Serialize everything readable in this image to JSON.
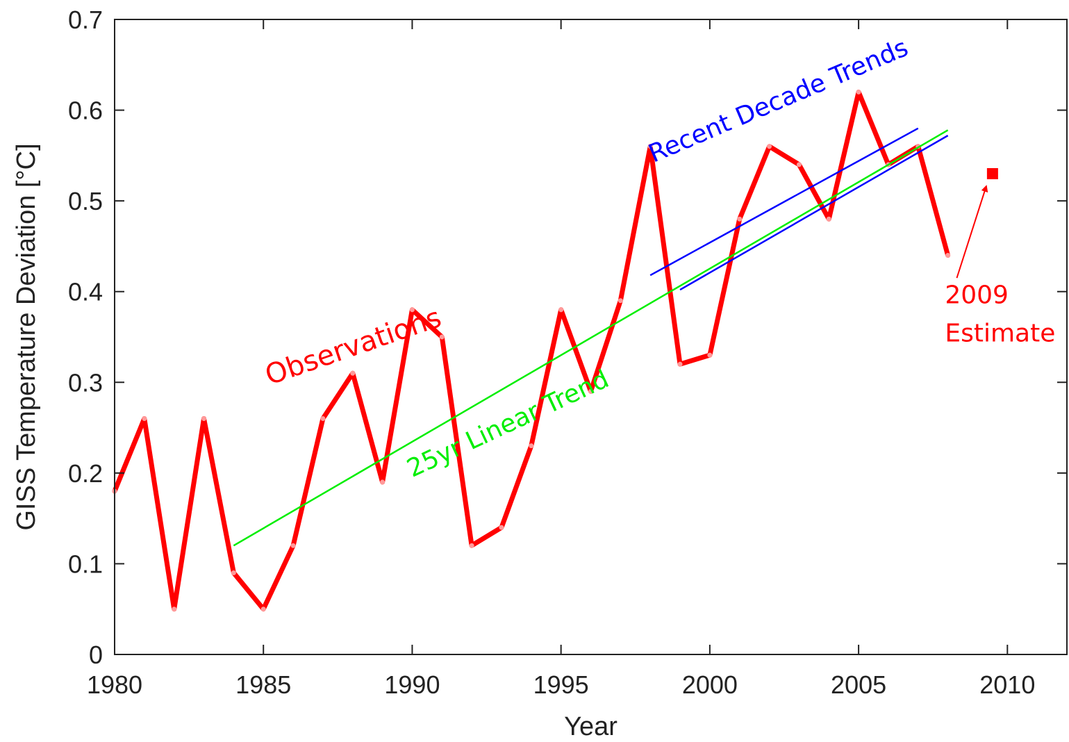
{
  "chart_data": {
    "type": "line",
    "xlabel": "Year",
    "ylabel": "GISS Temperature Deviation [°C]",
    "xlim": [
      1980,
      2012
    ],
    "ylim": [
      0,
      0.7
    ],
    "x_ticks": [
      1980,
      1985,
      1990,
      1995,
      2000,
      2005,
      2010
    ],
    "y_ticks": [
      0,
      0.1,
      0.2,
      0.3,
      0.4,
      0.5,
      0.6,
      0.7
    ],
    "x_tick_labels": [
      "1980",
      "1985",
      "1990",
      "1995",
      "2000",
      "2005",
      "2010"
    ],
    "y_tick_labels": [
      "0",
      "0.1",
      "0.2",
      "0.3",
      "0.4",
      "0.5",
      "0.6",
      "0.7"
    ],
    "grid": false,
    "series": [
      {
        "name": "Observations",
        "color": "#ff0000",
        "x": [
          1980,
          1981,
          1982,
          1983,
          1984,
          1985,
          1986,
          1987,
          1988,
          1989,
          1990,
          1991,
          1992,
          1993,
          1994,
          1995,
          1996,
          1997,
          1998,
          1999,
          2000,
          2001,
          2002,
          2003,
          2004,
          2005,
          2006,
          2007,
          2008
        ],
        "y": [
          0.18,
          0.26,
          0.05,
          0.26,
          0.09,
          0.05,
          0.12,
          0.26,
          0.31,
          0.19,
          0.38,
          0.35,
          0.12,
          0.14,
          0.23,
          0.38,
          0.29,
          0.39,
          0.56,
          0.32,
          0.33,
          0.48,
          0.56,
          0.54,
          0.48,
          0.62,
          0.54,
          0.56,
          0.44
        ]
      },
      {
        "name": "25yr Linear Trend",
        "color": "#00ee00",
        "x": [
          1984,
          2008
        ],
        "y": [
          0.12,
          0.578
        ]
      },
      {
        "name": "Recent Decade Trends",
        "color": "#0000ff",
        "lines": [
          {
            "x": [
              1998,
              2007
            ],
            "y": [
              0.418,
              0.58
            ]
          },
          {
            "x": [
              1999,
              2008
            ],
            "y": [
              0.402,
              0.572
            ]
          }
        ]
      }
    ],
    "estimate": {
      "x": 2009.5,
      "y": 0.53,
      "color": "#ff0000"
    },
    "annotations": [
      {
        "text": "Observations",
        "color": "#ff0000",
        "x": 1985.2,
        "y": 0.297,
        "angle": -19,
        "size": 40
      },
      {
        "text": "25yr Linear Trend",
        "color": "#00ee00",
        "x": 1990,
        "y": 0.195,
        "angle": -25,
        "size": 36
      },
      {
        "text": "Recent Decade Trends",
        "color": "#0000ff",
        "x": 1998.1,
        "y": 0.542,
        "angle": -23,
        "size": 36
      },
      {
        "text": "2009",
        "color": "#ff0000",
        "x": 2007.9,
        "y": 0.387,
        "angle": 0,
        "size": 36
      },
      {
        "text": "Estimate",
        "color": "#ff0000",
        "x": 2007.9,
        "y": 0.345,
        "angle": 0,
        "size": 36
      }
    ]
  }
}
